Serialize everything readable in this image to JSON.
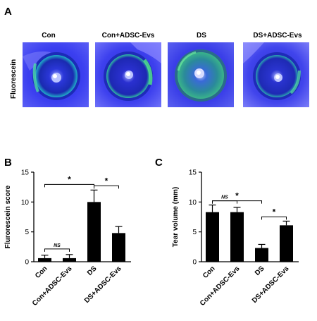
{
  "panel_a": {
    "letter": "A",
    "row_label": "Fluorescein",
    "groups": [
      "Con",
      "Con+ADSC-Evs",
      "DS",
      "DS+ADSC-Evs"
    ]
  },
  "panel_b": {
    "letter": "B"
  },
  "panel_c": {
    "letter": "C"
  },
  "chart_data": [
    {
      "type": "bar",
      "categories": [
        "Con",
        "Con+ADSC-Evs",
        "DS",
        "DS+ADSC-Evs"
      ],
      "values": [
        0.6,
        0.6,
        10.0,
        4.8
      ],
      "errors": [
        0.5,
        0.6,
        2.0,
        1.1
      ],
      "xlabel": "",
      "ylabel": "Flurorescein  score",
      "ylim": [
        0,
        15
      ],
      "yticks": [
        0,
        5,
        10,
        15
      ],
      "bar_color": "#000000",
      "significance": [
        {
          "from": 0,
          "to": 1,
          "label": "NS"
        },
        {
          "from": 0,
          "to": 2,
          "label": "*"
        },
        {
          "from": 2,
          "to": 3,
          "label": "*"
        }
      ]
    },
    {
      "type": "bar",
      "categories": [
        "Con",
        "Con+ADSC-Evs",
        "DS",
        "DS+ADSC-Evs"
      ],
      "values": [
        8.3,
        8.3,
        2.3,
        6.1
      ],
      "errors": [
        1.2,
        0.8,
        0.6,
        0.7
      ],
      "xlabel": "",
      "ylabel": "Tear volume (mm)",
      "ylim": [
        0,
        15
      ],
      "yticks": [
        0,
        5,
        10,
        15
      ],
      "bar_color": "#000000",
      "significance": [
        {
          "from": 0,
          "to": 1,
          "label": "NS"
        },
        {
          "from": 0,
          "to": 2,
          "label": "*"
        },
        {
          "from": 2,
          "to": 3,
          "label": "*"
        }
      ]
    }
  ]
}
